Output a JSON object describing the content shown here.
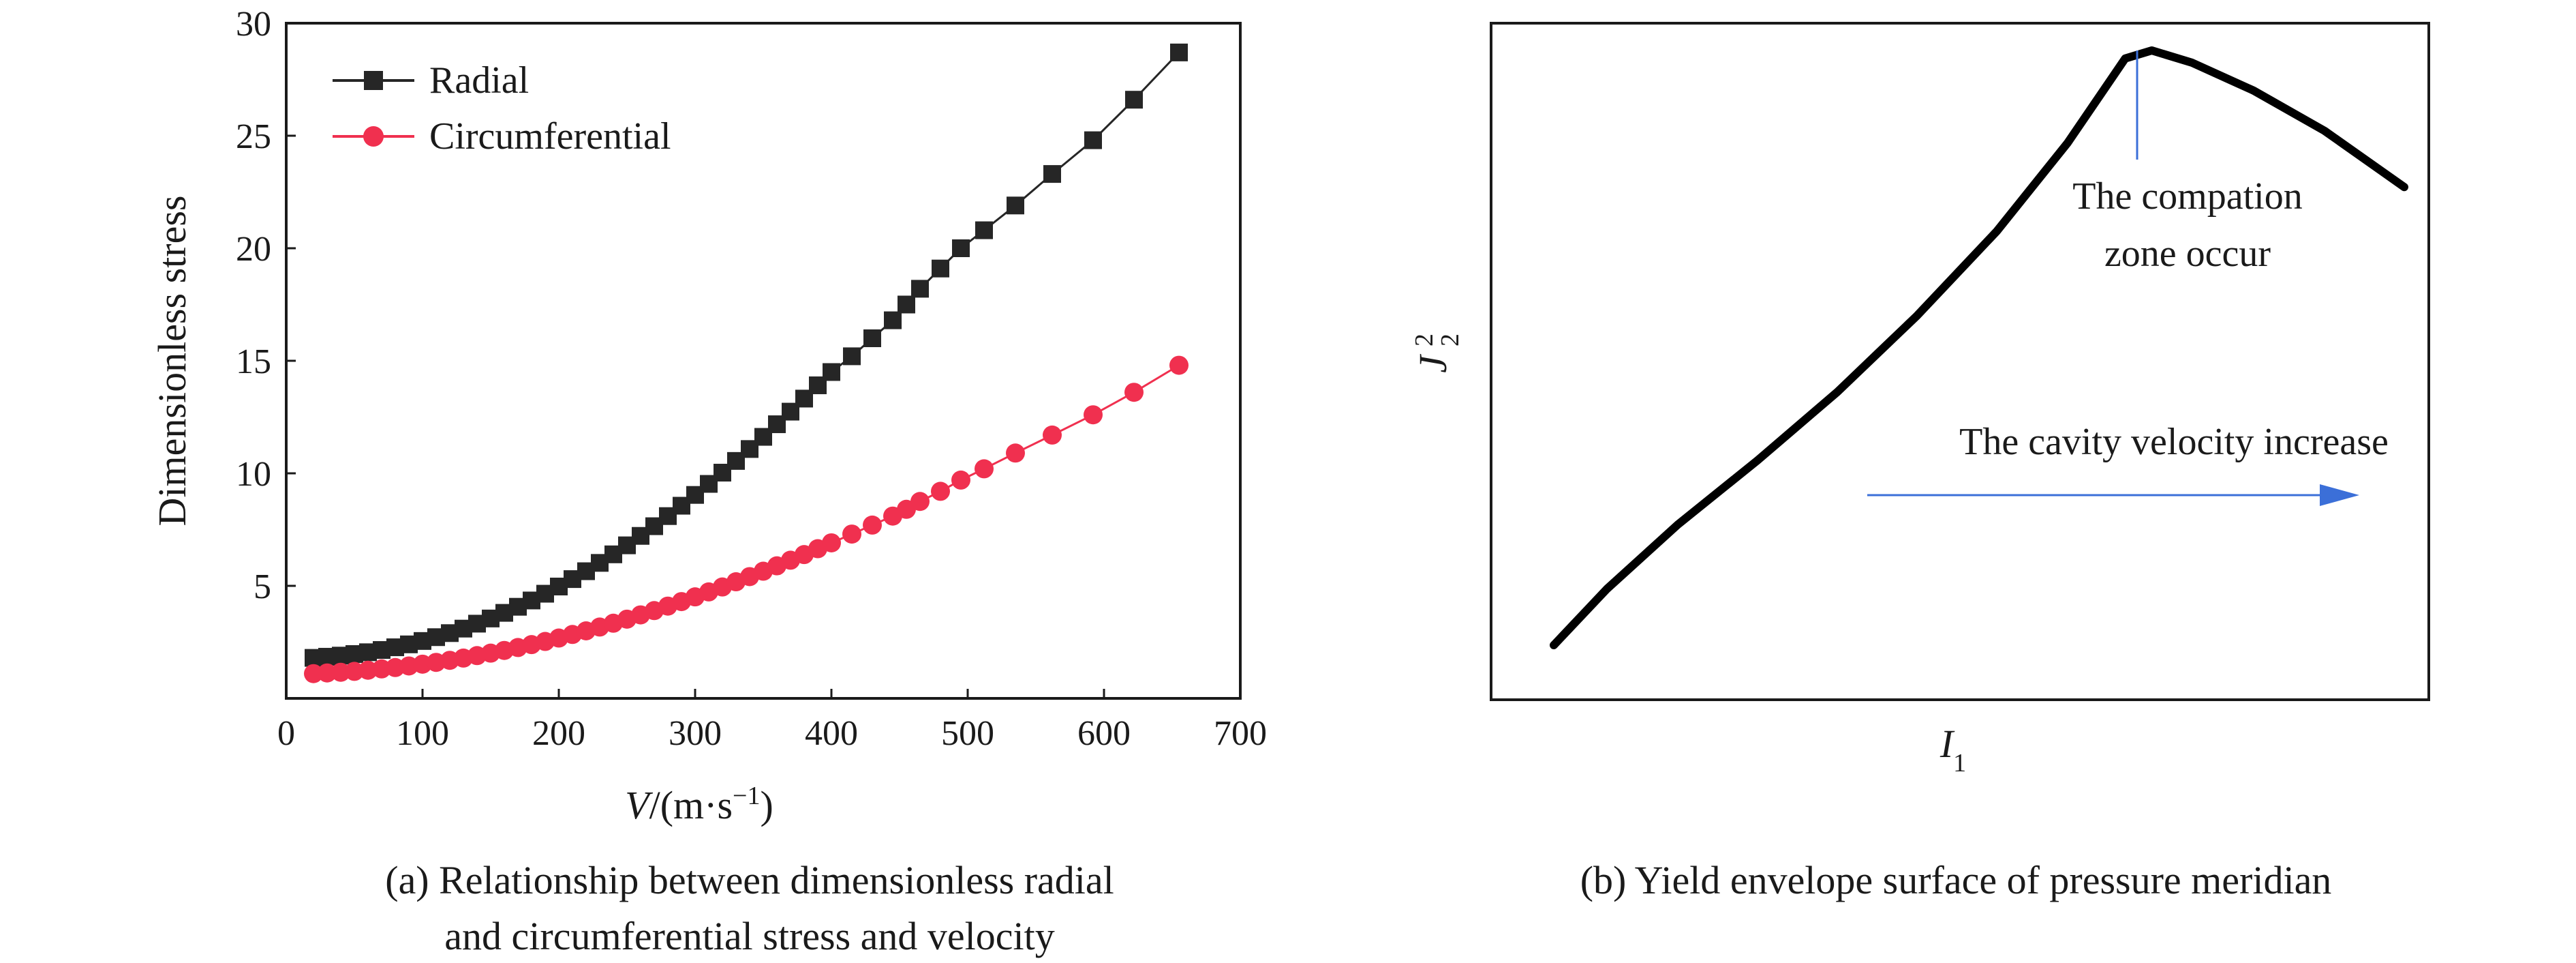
{
  "chart_data": [
    {
      "type": "line",
      "xlabel": "V/(m·s−1)",
      "ylabel": "Dimensionless stress",
      "caption_line1": "(a) Relationship between dimensionless radial",
      "caption_line2": "and circumferential stress and velocity",
      "xlim": [
        0,
        700
      ],
      "ylim": [
        0,
        30
      ],
      "xticks": [
        0,
        100,
        200,
        300,
        400,
        500,
        600,
        700
      ],
      "yticks": [
        5,
        10,
        15,
        20,
        25,
        30
      ],
      "legend_position": "top-left",
      "grid": false,
      "series": [
        {
          "name": "Radial",
          "color": "#262626",
          "marker": "square",
          "x": [
            20,
            30,
            40,
            50,
            60,
            70,
            80,
            90,
            100,
            110,
            120,
            130,
            140,
            150,
            160,
            170,
            180,
            190,
            200,
            210,
            220,
            230,
            240,
            250,
            260,
            270,
            280,
            290,
            300,
            310,
            320,
            330,
            340,
            350,
            360,
            370,
            380,
            390,
            400,
            415,
            430,
            445,
            455,
            465,
            480,
            495,
            512,
            535,
            562,
            592,
            622,
            655
          ],
          "y": [
            1.8,
            1.85,
            1.9,
            1.97,
            2.05,
            2.15,
            2.27,
            2.4,
            2.55,
            2.72,
            2.9,
            3.1,
            3.32,
            3.55,
            3.8,
            4.07,
            4.35,
            4.65,
            4.97,
            5.3,
            5.65,
            6.02,
            6.4,
            6.8,
            7.22,
            7.65,
            8.1,
            8.56,
            9.04,
            9.53,
            10.03,
            10.55,
            11.08,
            11.62,
            12.18,
            12.74,
            13.32,
            13.91,
            14.5,
            15.2,
            16.0,
            16.8,
            17.5,
            18.2,
            19.1,
            20.0,
            20.8,
            21.9,
            23.3,
            24.8,
            26.6,
            28.7
          ]
        },
        {
          "name": "Circumferential",
          "color": "#f0304f",
          "marker": "circle",
          "x": [
            20,
            30,
            40,
            50,
            60,
            70,
            80,
            90,
            100,
            110,
            120,
            130,
            140,
            150,
            160,
            170,
            180,
            190,
            200,
            210,
            220,
            230,
            240,
            250,
            260,
            270,
            280,
            290,
            300,
            310,
            320,
            330,
            340,
            350,
            360,
            370,
            380,
            390,
            400,
            415,
            430,
            445,
            455,
            465,
            480,
            495,
            512,
            535,
            562,
            592,
            622,
            655
          ],
          "y": [
            1.1,
            1.13,
            1.16,
            1.2,
            1.25,
            1.31,
            1.37,
            1.44,
            1.52,
            1.6,
            1.69,
            1.79,
            1.9,
            2.01,
            2.13,
            2.26,
            2.39,
            2.53,
            2.68,
            2.84,
            3.0,
            3.17,
            3.34,
            3.52,
            3.71,
            3.9,
            4.1,
            4.3,
            4.51,
            4.73,
            4.95,
            5.18,
            5.41,
            5.65,
            5.89,
            6.14,
            6.39,
            6.65,
            6.91,
            7.3,
            7.7,
            8.1,
            8.4,
            8.75,
            9.2,
            9.7,
            10.2,
            10.9,
            11.7,
            12.6,
            13.6,
            14.8
          ]
        }
      ]
    },
    {
      "type": "line",
      "xlabel": "I1",
      "ylabel": "J22",
      "caption": "(b) Yield envelope surface of pressure meridian",
      "annotation_line1": "The compation",
      "annotation_line2": "zone occur",
      "arrow_label": "The cavity velocity increase",
      "line_color": "#000000",
      "annotation_color": "#3b6fd8",
      "x": [
        0,
        0.6,
        1.4,
        2.3,
        3.2,
        4.1,
        5.0,
        5.8,
        6.45,
        6.75,
        7.2,
        7.9,
        8.7,
        9.6
      ],
      "y": [
        0,
        1.4,
        3.0,
        4.6,
        6.3,
        8.2,
        10.3,
        12.5,
        14.6,
        14.8,
        14.5,
        13.8,
        12.8,
        11.4
      ]
    }
  ]
}
